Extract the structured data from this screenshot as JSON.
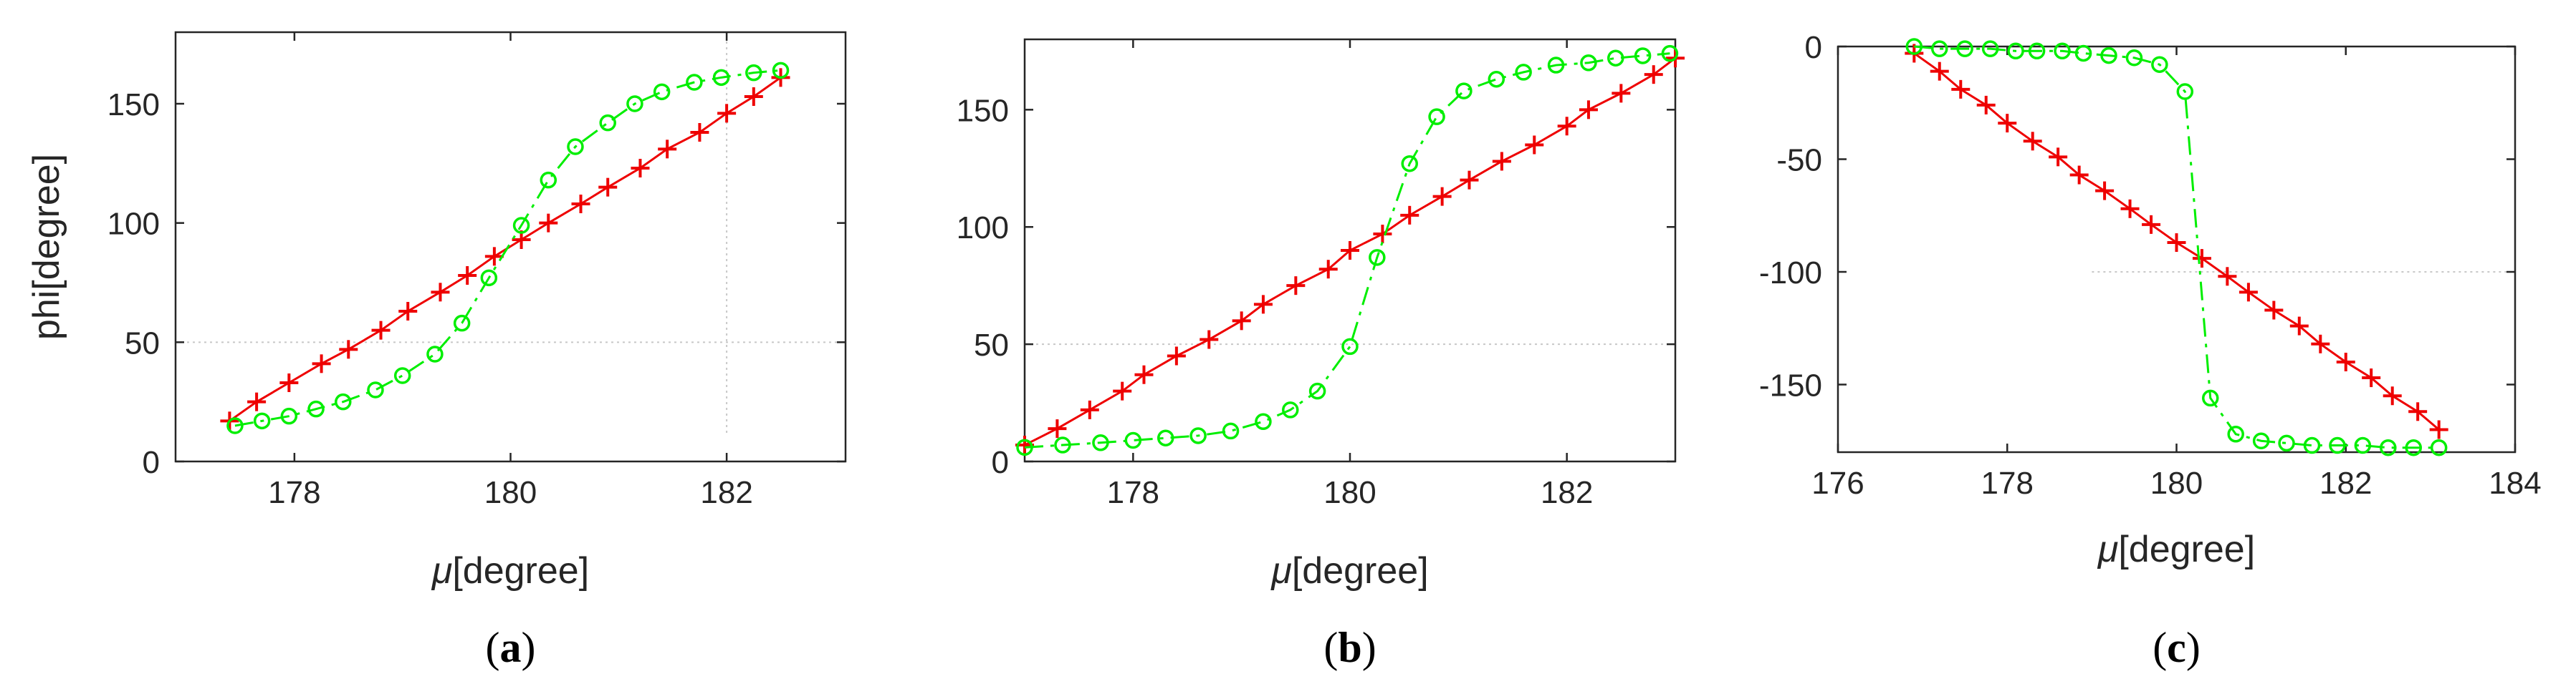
{
  "figure": {
    "colors": {
      "red": "#ee0000",
      "green": "#00ee00",
      "frame": "#262626",
      "grid": "#c8c8c8"
    }
  },
  "chart_data": [
    {
      "type": "line",
      "panel_label": "(a)",
      "panel_letter": "a",
      "xlabel_symbol": "μ",
      "xlabel_unit": "[degree]",
      "ylabel": "phi[degree]",
      "xlim": [
        176.9,
        183.1
      ],
      "ylim": [
        0,
        180
      ],
      "xticks": [
        178,
        180,
        182
      ],
      "xtick_labels": [
        "178",
        "180",
        "182"
      ],
      "yticks": [
        0,
        50,
        100,
        150
      ],
      "ytick_labels": [
        "0",
        "50",
        "100",
        "150"
      ],
      "ref_lines": [
        {
          "orientation": "horizontal",
          "value": 50,
          "from": 176.9,
          "to": 183.1
        },
        {
          "orientation": "vertical",
          "value": 182,
          "from": 12,
          "to": 180
        }
      ],
      "series": [
        {
          "name": "red",
          "marker": "plus",
          "line": "solid",
          "x": [
            177.4,
            177.65,
            177.95,
            178.25,
            178.5,
            178.8,
            179.05,
            179.35,
            179.6,
            179.85,
            180.1,
            180.35,
            180.65,
            180.9,
            181.2,
            181.45,
            181.75,
            182.0,
            182.25,
            182.5
          ],
          "y": [
            17,
            25,
            33,
            41,
            47,
            55,
            63,
            71,
            78,
            86,
            93,
            100,
            108,
            115,
            123,
            131,
            138,
            146,
            153,
            161
          ]
        },
        {
          "name": "green",
          "marker": "circle",
          "line": "dash-dot",
          "x": [
            177.45,
            177.7,
            177.95,
            178.2,
            178.45,
            178.75,
            179.0,
            179.3,
            179.55,
            179.8,
            180.1,
            180.35,
            180.6,
            180.9,
            181.15,
            181.4,
            181.7,
            181.95,
            182.25,
            182.5
          ],
          "y": [
            15,
            17,
            19,
            22,
            25,
            30,
            36,
            45,
            58,
            77,
            99,
            118,
            132,
            142,
            150,
            155,
            159,
            161,
            163,
            164
          ]
        }
      ]
    },
    {
      "type": "line",
      "panel_label": "(b)",
      "panel_letter": "b",
      "xlabel_symbol": "μ",
      "xlabel_unit": "[degree]",
      "ylabel": "",
      "xlim": [
        177,
        183
      ],
      "ylim": [
        0,
        180
      ],
      "xticks": [
        178,
        180,
        182
      ],
      "xtick_labels": [
        "178",
        "180",
        "182"
      ],
      "yticks": [
        0,
        50,
        100,
        150
      ],
      "ytick_labels": [
        "0",
        "50",
        "100",
        "150"
      ],
      "ref_lines": [
        {
          "orientation": "horizontal",
          "value": 50,
          "from": 177,
          "to": 183
        }
      ],
      "series": [
        {
          "name": "red",
          "marker": "plus",
          "line": "solid",
          "x": [
            177.0,
            177.3,
            177.6,
            177.9,
            178.1,
            178.4,
            178.7,
            179.0,
            179.2,
            179.5,
            179.8,
            180.0,
            180.3,
            180.55,
            180.85,
            181.1,
            181.4,
            181.7,
            182.0,
            182.2,
            182.5,
            182.8,
            183.0
          ],
          "y": [
            7,
            14,
            22,
            30,
            37,
            45,
            52,
            60,
            67,
            75,
            82,
            90,
            97,
            105,
            113,
            120,
            128,
            135,
            143,
            150,
            157,
            165,
            172
          ]
        },
        {
          "name": "green",
          "marker": "circle",
          "line": "dash-dot",
          "x": [
            177.0,
            177.35,
            177.7,
            178.0,
            178.3,
            178.6,
            178.9,
            179.2,
            179.45,
            179.7,
            180.0,
            180.25,
            180.55,
            180.8,
            181.05,
            181.35,
            181.6,
            181.9,
            182.2,
            182.45,
            182.7,
            182.95
          ],
          "y": [
            6,
            7,
            8,
            9,
            10,
            11,
            13,
            17,
            22,
            30,
            49,
            87,
            127,
            147,
            158,
            163,
            166,
            169,
            170,
            172,
            173,
            174
          ]
        }
      ]
    },
    {
      "type": "line",
      "panel_label": "(c)",
      "panel_letter": "c",
      "xlabel_symbol": "μ",
      "xlabel_unit": "[degree]",
      "ylabel": "",
      "xlim": [
        176,
        184
      ],
      "ylim": [
        -180,
        0
      ],
      "xticks": [
        176,
        178,
        180,
        182,
        184
      ],
      "xtick_labels": [
        "176",
        "178",
        "180",
        "182",
        "184"
      ],
      "yticks": [
        0,
        -50,
        -100,
        -150
      ],
      "ytick_labels": [
        "0",
        "-50",
        "-100",
        "-150"
      ],
      "ref_lines": [
        {
          "orientation": "horizontal",
          "value": -100,
          "from": 179,
          "to": 184
        }
      ],
      "series": [
        {
          "name": "red",
          "marker": "plus",
          "line": "solid",
          "x": [
            176.9,
            177.2,
            177.45,
            177.75,
            178.0,
            178.3,
            178.6,
            178.85,
            179.15,
            179.45,
            179.7,
            180.0,
            180.3,
            180.6,
            180.85,
            181.15,
            181.45,
            181.7,
            182.0,
            182.3,
            182.55,
            182.85,
            183.1
          ],
          "y": [
            -3,
            -11,
            -19,
            -26,
            -34,
            -42,
            -49,
            -57,
            -64,
            -72,
            -79,
            -87,
            -94,
            -102,
            -109,
            -117,
            -124,
            -132,
            -140,
            -147,
            -155,
            -162,
            -170
          ]
        },
        {
          "name": "green",
          "marker": "circle",
          "line": "dash-dot",
          "x": [
            176.9,
            177.2,
            177.5,
            177.8,
            178.1,
            178.35,
            178.65,
            178.9,
            179.2,
            179.5,
            179.8,
            180.1,
            180.4,
            180.7,
            181.0,
            181.3,
            181.6,
            181.9,
            182.2,
            182.5,
            182.8,
            183.1
          ],
          "y": [
            0,
            -1,
            -1,
            -1,
            -2,
            -2,
            -2,
            -3,
            -4,
            -5,
            -8,
            -20,
            -156,
            -172,
            -175,
            -176,
            -177,
            -177,
            -177,
            -178,
            -178,
            -178
          ]
        }
      ]
    }
  ]
}
